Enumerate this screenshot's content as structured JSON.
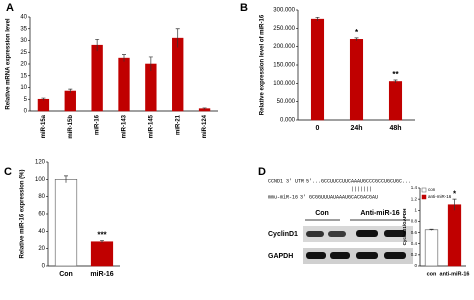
{
  "chart_data": [
    {
      "panel": "A",
      "type": "bar",
      "ylabel": "Relative mRNA expression level",
      "categories": [
        "miR-15a",
        "miR-15b",
        "miR-16",
        "miR-143",
        "miR-145",
        "miR-21",
        "miR-124"
      ],
      "values": [
        5,
        8.5,
        28,
        22.5,
        20,
        31,
        1
      ],
      "errors": [
        0.5,
        0.8,
        2.5,
        1.5,
        3,
        4,
        0.3
      ],
      "color": "#c00000",
      "ylim": [
        0,
        40
      ],
      "yticks": [
        0,
        5,
        10,
        15,
        20,
        25,
        30,
        35,
        40
      ]
    },
    {
      "panel": "B",
      "type": "bar",
      "ylabel": "Relative expression level of miR-16",
      "categories": [
        "0",
        "24h",
        "48h"
      ],
      "values": [
        275,
        220,
        105
      ],
      "errors": [
        5,
        4,
        4
      ],
      "color": "#c00000",
      "ylim": [
        0,
        300
      ],
      "yticks": [
        {
          "value": 0,
          "label": "0.000"
        },
        {
          "value": 50,
          "label": "50.000"
        },
        {
          "value": 100,
          "label": "100.000"
        },
        {
          "value": 150,
          "label": "150.000"
        },
        {
          "value": 200,
          "label": "200.000"
        },
        {
          "value": 250,
          "label": "250.000"
        },
        {
          "value": 300,
          "label": "300.000"
        }
      ],
      "annotations": [
        {
          "category": "24h",
          "text": "*"
        },
        {
          "category": "48h",
          "text": "**"
        }
      ]
    },
    {
      "panel": "C",
      "type": "bar",
      "ylabel": "Relative miR-16 expression (%)",
      "categories": [
        "Con",
        "miR-16"
      ],
      "values": [
        100,
        28
      ],
      "errors": [
        4,
        1.5
      ],
      "colors": [
        "#ffffff",
        "#c00000"
      ],
      "ylim": [
        0,
        120
      ],
      "yticks": [
        0,
        20,
        40,
        60,
        80,
        100,
        120
      ],
      "annotations": [
        {
          "category": "miR-16",
          "text": "***"
        }
      ]
    },
    {
      "panel": "D",
      "type": "bar",
      "ylabel": "CyclinD1/GAPDH",
      "categories": [
        "con",
        "anti-miR-16"
      ],
      "values": [
        0.65,
        1.1
      ],
      "errors": [
        0.01,
        0.1
      ],
      "colors": [
        "#ffffff",
        "#c00000"
      ],
      "ylim": [
        0,
        1.4
      ],
      "yticks": [
        0,
        0.2,
        0.4,
        0.6,
        0.8,
        1,
        1.2,
        1.4
      ],
      "legend": true,
      "annotations": [
        {
          "category": "anti-miR-16",
          "text": "*"
        }
      ]
    }
  ],
  "blot": {
    "utr_label": "CCND1 3' UTR",
    "utr_seq": "5'...GCCUUCCUUCAAAUGCCCGCCUGCUGC...",
    "mir_label": "mmu-miR-16",
    "mir_seq": "3'   GCGGUUUAUAAAUGCACGACGAU",
    "groups": [
      "Con",
      "Anti-miR-16"
    ],
    "rows": [
      "CyclinD1",
      "GAPDH"
    ]
  }
}
